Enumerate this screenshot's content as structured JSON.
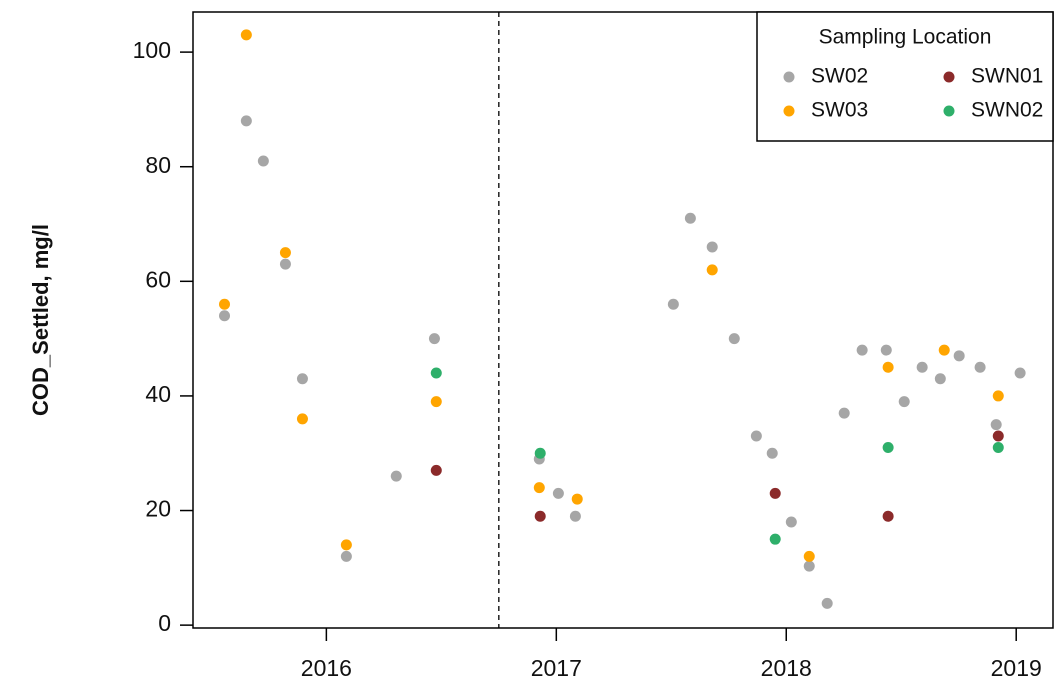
{
  "chart_data": {
    "type": "scatter",
    "y_label": "COD_Settled, mg/l",
    "xlim": [
      2015.42,
      2019.16
    ],
    "xticks": [
      2016,
      2017,
      2018,
      2019
    ],
    "ylim": [
      -0.5,
      107
    ],
    "yticks": [
      0,
      20,
      40,
      60,
      80,
      100
    ],
    "vlines": [
      2016.75
    ],
    "legend": {
      "title": "Sampling Location",
      "position": "top-right"
    },
    "series": [
      {
        "name": "SW02",
        "color": "#a6a6a6",
        "x": [
          2015.557,
          2015.652,
          2015.726,
          2015.822,
          2015.896,
          2016.087,
          2016.304,
          2016.47,
          2016.926,
          2017.009,
          2017.083,
          2017.509,
          2017.583,
          2017.678,
          2017.774,
          2017.87,
          2017.939,
          2018.022,
          2018.1,
          2018.178,
          2018.252,
          2018.33,
          2018.435,
          2018.513,
          2018.591,
          2018.67,
          2018.752,
          2018.843,
          2018.913,
          2019.017
        ],
        "values": [
          54,
          88,
          81,
          63,
          43,
          12,
          26,
          50,
          29,
          23,
          19,
          56,
          71,
          66,
          50,
          33,
          30,
          18,
          10.3,
          3.8,
          37,
          48,
          48,
          39,
          45,
          43,
          47,
          45,
          35,
          44
        ]
      },
      {
        "name": "SW03",
        "color": "#ffa500",
        "x": [
          2015.557,
          2015.652,
          2015.822,
          2015.896,
          2016.087,
          2016.478,
          2016.926,
          2017.091,
          2017.678,
          2018.1,
          2018.443,
          2018.687,
          2018.922
        ],
        "values": [
          56,
          103,
          65,
          36,
          14,
          39,
          24,
          22,
          62,
          12,
          45,
          48,
          40
        ]
      },
      {
        "name": "SWN01",
        "color": "#8b2a2a",
        "x": [
          2016.478,
          2016.93,
          2017.952,
          2018.443,
          2018.922
        ],
        "values": [
          27,
          19,
          23,
          19,
          33
        ]
      },
      {
        "name": "SWN02",
        "color": "#2eaf6a",
        "x": [
          2016.478,
          2016.93,
          2017.952,
          2018.443,
          2018.922
        ],
        "values": [
          44,
          30,
          15,
          31,
          31
        ]
      }
    ]
  }
}
